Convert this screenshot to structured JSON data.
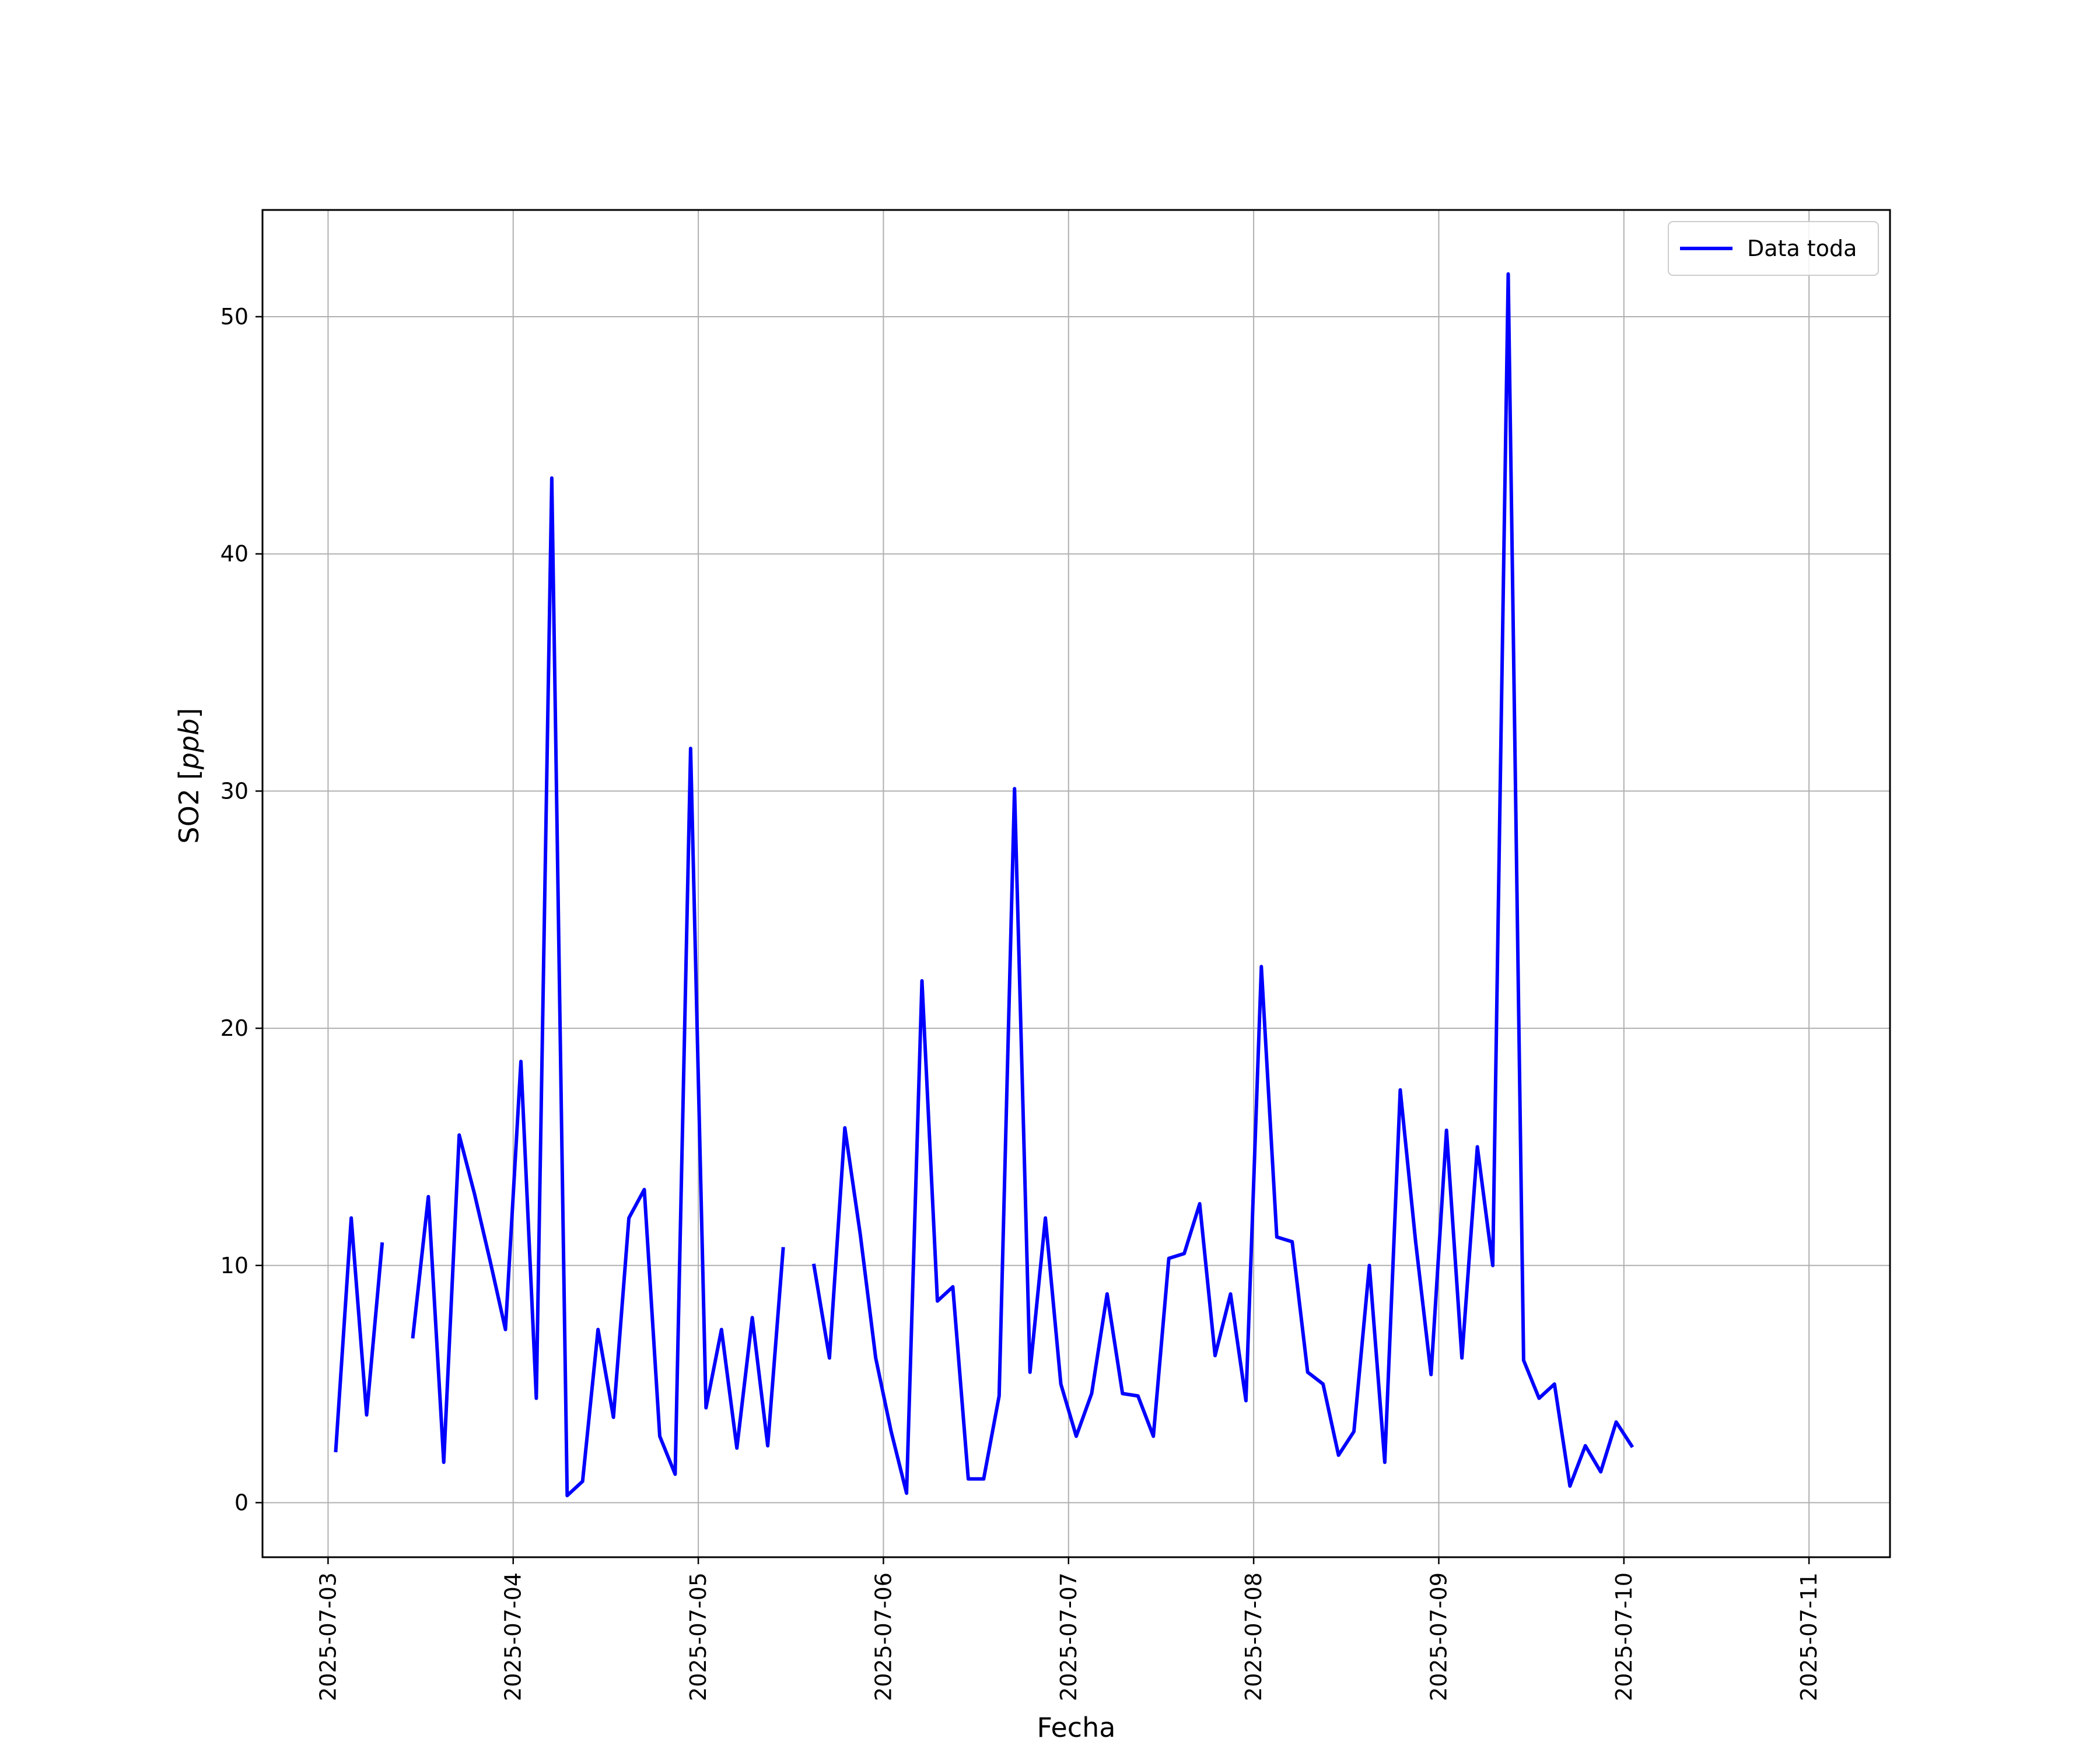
{
  "chart_data": {
    "type": "line",
    "title": "",
    "xlabel": "Fecha",
    "ylabel": "SO2 [ppb]",
    "ylabel_parts": {
      "plain": "SO2 [",
      "italic": "ppb",
      "close": "]"
    },
    "xlim": [
      "2025-07-02 15:30",
      "2025-07-11 10:30"
    ],
    "ylim": [
      -2.3,
      54.5
    ],
    "x_ticks": [
      "2025-07-03",
      "2025-07-04",
      "2025-07-05",
      "2025-07-06",
      "2025-07-07",
      "2025-07-08",
      "2025-07-09",
      "2025-07-10",
      "2025-07-11"
    ],
    "y_ticks": [
      0,
      10,
      20,
      30,
      40,
      50
    ],
    "y_tick_labels": [
      "0",
      "10",
      "20",
      "30",
      "40",
      "50"
    ],
    "grid": true,
    "legend": {
      "position": "top-right",
      "entries": [
        "Data toda"
      ]
    },
    "series": [
      {
        "name": "Data toda",
        "color": "#0000ff",
        "x": [
          "2025-07-03 01:00",
          "2025-07-03 03:00",
          "2025-07-03 05:00",
          "2025-07-03 07:00",
          "2025-07-03 09:00",
          "2025-07-03 11:00",
          "2025-07-03 13:00",
          "2025-07-03 15:00",
          "2025-07-03 17:00",
          "2025-07-03 19:00",
          "2025-07-03 21:00",
          "2025-07-03 23:00",
          "2025-07-04 01:00",
          "2025-07-04 03:00",
          "2025-07-04 05:00",
          "2025-07-04 07:00",
          "2025-07-04 09:00",
          "2025-07-04 11:00",
          "2025-07-04 13:00",
          "2025-07-04 15:00",
          "2025-07-04 17:00",
          "2025-07-04 19:00",
          "2025-07-04 21:00",
          "2025-07-04 23:00",
          "2025-07-05 01:00",
          "2025-07-05 03:00",
          "2025-07-05 05:00",
          "2025-07-05 07:00",
          "2025-07-05 09:00",
          "2025-07-05 11:00",
          "2025-07-05 13:00",
          "2025-07-05 15:00",
          "2025-07-05 17:00",
          "2025-07-05 19:00",
          "2025-07-05 21:00",
          "2025-07-05 23:00",
          "2025-07-06 01:00",
          "2025-07-06 03:00",
          "2025-07-06 05:00",
          "2025-07-06 07:00",
          "2025-07-06 09:00",
          "2025-07-06 11:00",
          "2025-07-06 13:00",
          "2025-07-06 15:00",
          "2025-07-06 17:00",
          "2025-07-06 19:00",
          "2025-07-06 21:00",
          "2025-07-06 23:00",
          "2025-07-07 01:00",
          "2025-07-07 03:00",
          "2025-07-07 05:00",
          "2025-07-07 07:00",
          "2025-07-07 09:00",
          "2025-07-07 11:00",
          "2025-07-07 13:00",
          "2025-07-07 15:00",
          "2025-07-07 17:00",
          "2025-07-07 19:00",
          "2025-07-07 21:00",
          "2025-07-07 23:00",
          "2025-07-08 01:00",
          "2025-07-08 03:00",
          "2025-07-08 05:00",
          "2025-07-08 07:00",
          "2025-07-08 09:00",
          "2025-07-08 11:00",
          "2025-07-08 13:00",
          "2025-07-08 15:00",
          "2025-07-08 17:00",
          "2025-07-08 19:00",
          "2025-07-08 21:00",
          "2025-07-08 23:00",
          "2025-07-09 01:00",
          "2025-07-09 03:00",
          "2025-07-09 05:00",
          "2025-07-09 07:00",
          "2025-07-09 09:00",
          "2025-07-09 11:00",
          "2025-07-09 13:00",
          "2025-07-09 15:00",
          "2025-07-09 17:00",
          "2025-07-09 19:00",
          "2025-07-09 21:00",
          "2025-07-09 23:00",
          "2025-07-10 01:00",
          "2025-07-10 03:00",
          "2025-07-10 05:00",
          "2025-07-10 07:00",
          "2025-07-10 09:00",
          "2025-07-10 11:00",
          "2025-07-10 13:00",
          "2025-07-10 15:00",
          "2025-07-10 17:00",
          "2025-07-10 19:00",
          "2025-07-10 21:00",
          "2025-07-10 23:00"
        ],
        "values": [
          2.2,
          12.0,
          3.7,
          10.9,
          null,
          7.0,
          12.9,
          1.7,
          15.5,
          13.0,
          10.2,
          7.3,
          18.6,
          4.4,
          43.2,
          0.3,
          0.9,
          7.3,
          3.6,
          12.0,
          13.2,
          2.8,
          1.2,
          31.8,
          4.0,
          7.3,
          2.3,
          7.8,
          2.4,
          10.7,
          null,
          10.0,
          6.1,
          15.8,
          11.3,
          6.1,
          3.0,
          0.4,
          22.0,
          8.5,
          9.1,
          1.0,
          1.0,
          4.5,
          30.1,
          5.5,
          12.0,
          5.0,
          2.8,
          4.6,
          8.8,
          4.6,
          4.5,
          2.8,
          10.3,
          10.5,
          12.6,
          6.2,
          8.8,
          4.3,
          22.6,
          11.2,
          11.0,
          5.5,
          5.0,
          2.0,
          3.0,
          10.0,
          1.7,
          17.4,
          11.0,
          5.4,
          15.7,
          6.1,
          15.0,
          10.0,
          51.8,
          6.0,
          4.4,
          5.0,
          0.7,
          2.4,
          1.3,
          3.4,
          2.4,
          null,
          null,
          null,
          null,
          null,
          null,
          null,
          null,
          null,
          null,
          null
        ]
      }
    ]
  }
}
